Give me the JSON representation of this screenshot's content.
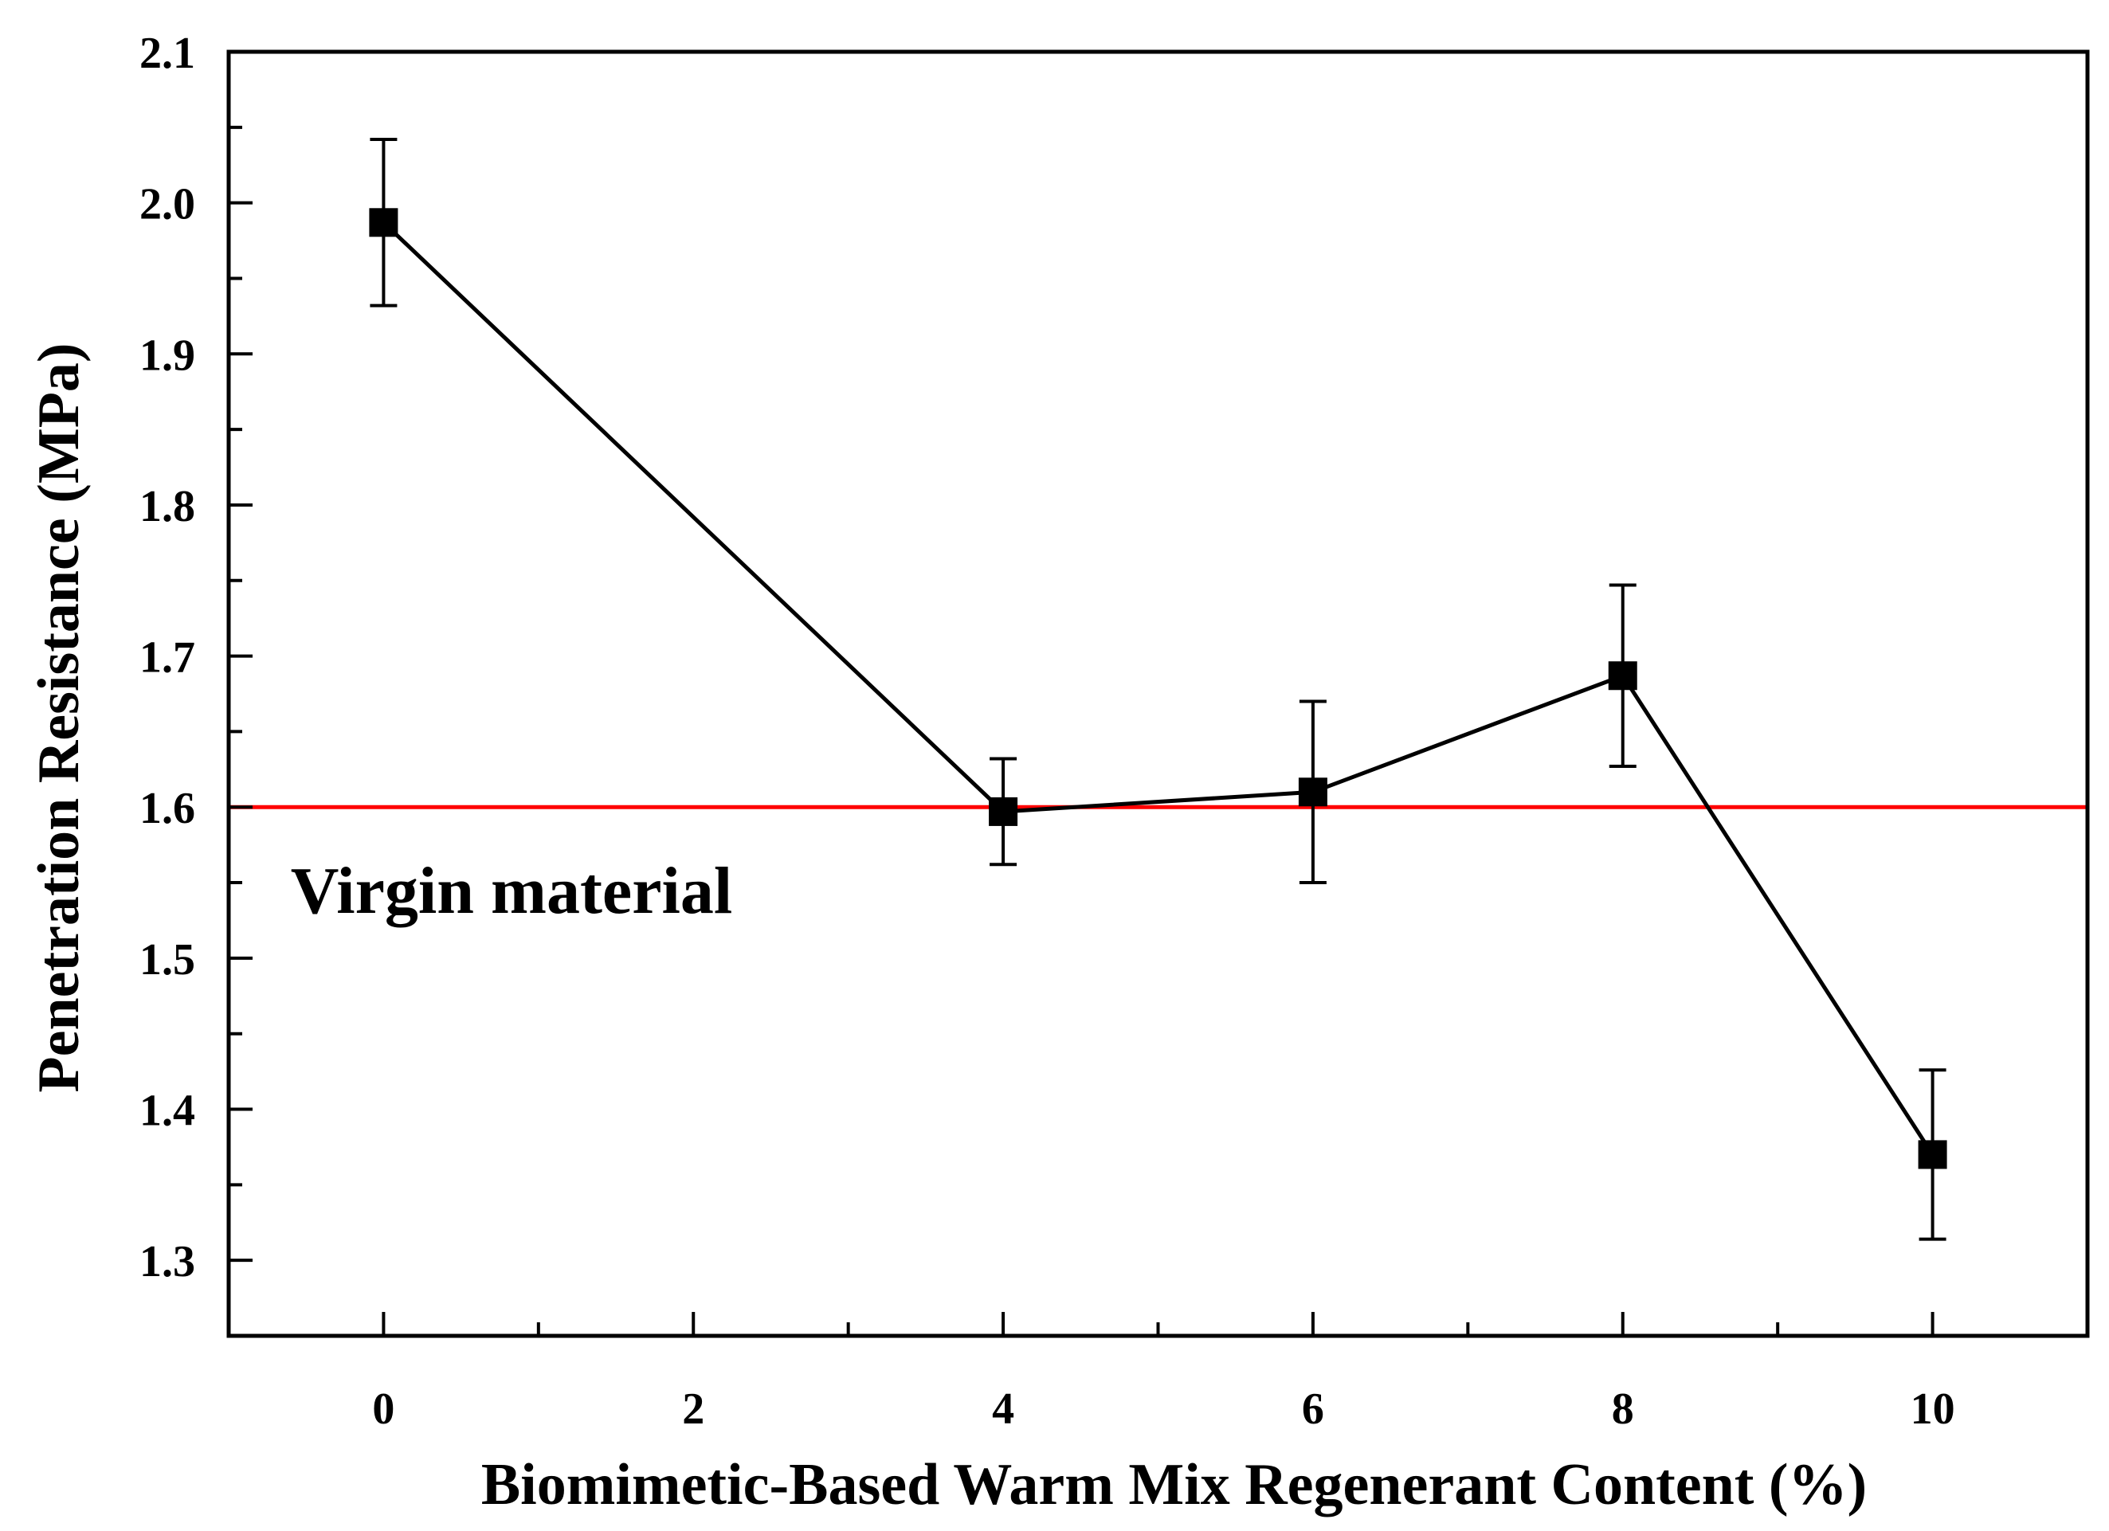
{
  "chart_data": {
    "type": "line",
    "title": "",
    "xlabel": "Biomimetic-Based Warm Mix Regenerant Content (%)",
    "ylabel": "Penetration Resistance (MPa)",
    "xlim": [
      -1,
      11
    ],
    "ylim": [
      1.25,
      2.1
    ],
    "xticks": [
      0,
      2,
      4,
      6,
      8,
      10
    ],
    "xtick_labels": [
      "0",
      "2",
      "4",
      "6",
      "8",
      "10"
    ],
    "yticks": [
      1.3,
      1.4,
      1.5,
      1.6,
      1.7,
      1.8,
      1.9,
      2.0,
      2.1
    ],
    "ytick_labels": [
      "1.3",
      "1.4",
      "1.5",
      "1.6",
      "1.7",
      "1.8",
      "1.9",
      "2.0",
      "2.1"
    ],
    "series": [
      {
        "name": "Penetration Resistance",
        "color": "#000000",
        "marker": "square",
        "x": [
          0,
          4,
          6,
          8,
          10
        ],
        "y": [
          1.987,
          1.597,
          1.61,
          1.687,
          1.37
        ],
        "error": [
          0.055,
          0.035,
          0.06,
          0.06,
          0.056
        ]
      }
    ],
    "reference_line": {
      "y": 1.6,
      "color": "#ff0000",
      "label": "Virgin material"
    },
    "grid": false
  }
}
